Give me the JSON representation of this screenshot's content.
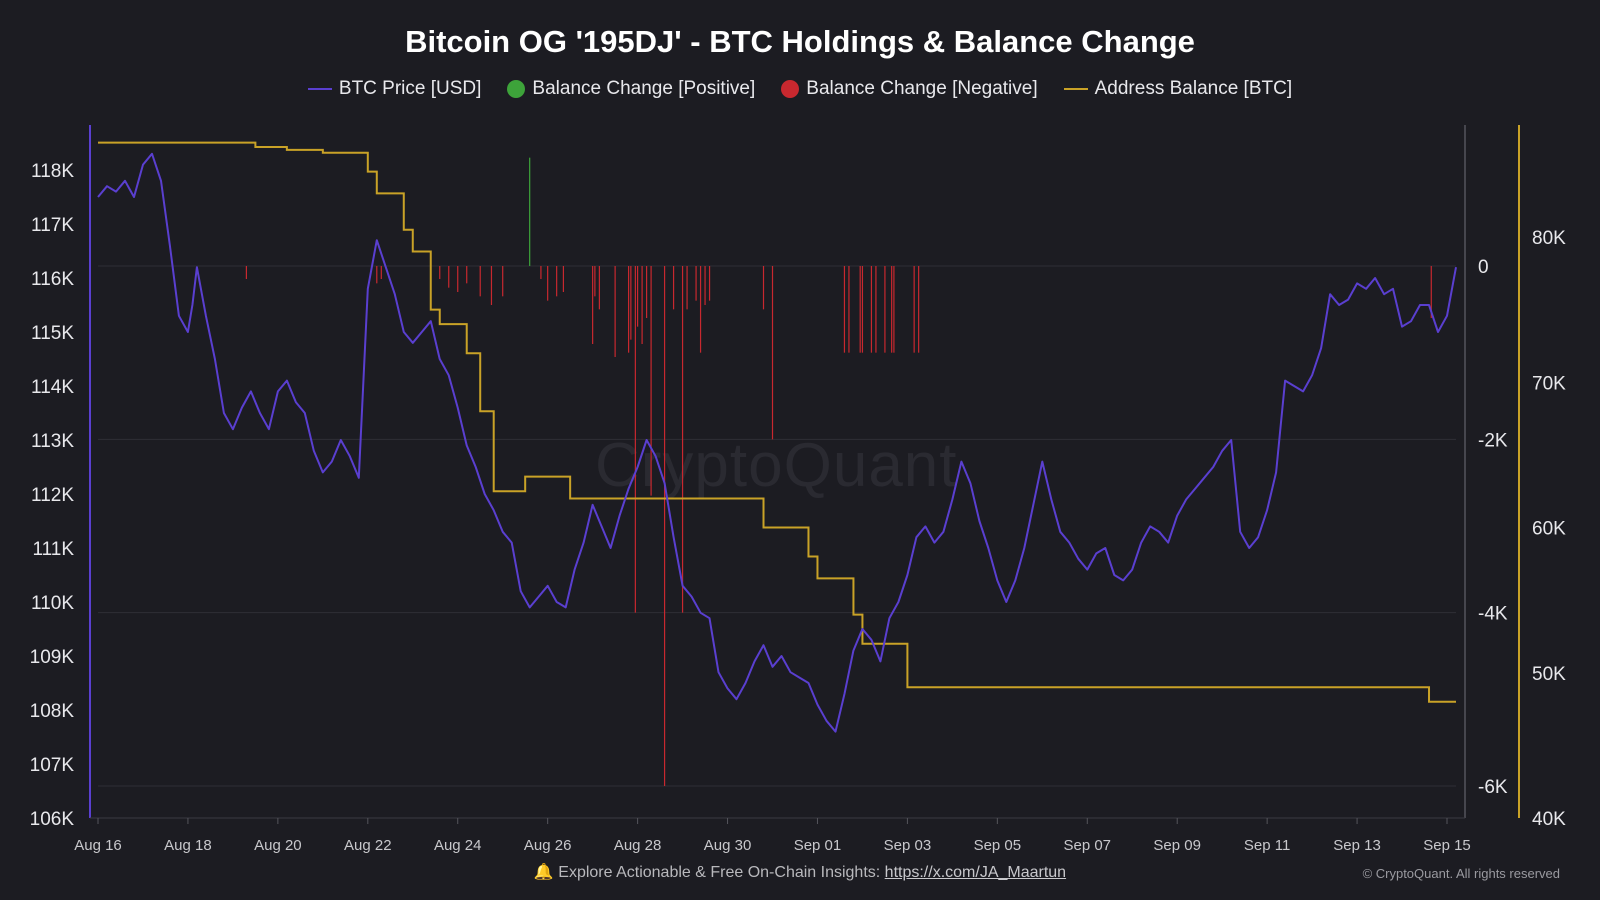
{
  "chart_data": {
    "type": "line",
    "title": "Bitcoin OG '195DJ' - BTC Holdings & Balance Change",
    "legend": [
      {
        "name": "BTC Price [USD]",
        "kind": "line",
        "color": "#5a3fd0"
      },
      {
        "name": "Balance Change [Positive]",
        "kind": "dot",
        "color": "#3da33a"
      },
      {
        "name": "Balance Change [Negative]",
        "kind": "dot",
        "color": "#c8282f"
      },
      {
        "name": "Address Balance [BTC]",
        "kind": "line",
        "color": "#c9a227"
      }
    ],
    "x_ticks": [
      "Aug 16",
      "Aug 18",
      "Aug 20",
      "Aug 22",
      "Aug 24",
      "Aug 26",
      "Aug 28",
      "Aug 30",
      "Sep 01",
      "Sep 03",
      "Sep 05",
      "Sep 07",
      "Sep 09",
      "Sep 11",
      "Sep 13",
      "Sep 15"
    ],
    "x_range_days": [
      0,
      30.2
    ],
    "y_left": {
      "ticks": [
        "118K",
        "117K",
        "116K",
        "115K",
        "114K",
        "113K",
        "112K",
        "111K",
        "110K",
        "109K",
        "108K",
        "107K",
        "106K"
      ],
      "values": [
        118000,
        117000,
        116000,
        115000,
        114000,
        113000,
        112000,
        111000,
        110000,
        109000,
        108000,
        107000,
        106000
      ]
    },
    "y_right_inner": {
      "ticks": [
        "0",
        "-2K",
        "-4K",
        "-6K"
      ],
      "values": [
        0,
        -2000,
        -4000,
        -6000
      ]
    },
    "y_right_outer": {
      "ticks": [
        "80K",
        "70K",
        "60K",
        "50K",
        "40K"
      ],
      "values": [
        80000,
        70000,
        60000,
        50000,
        40000
      ]
    },
    "series": [
      {
        "name": "BTC Price [USD]",
        "axis": "left",
        "x_days": [
          0,
          0.2,
          0.4,
          0.6,
          0.8,
          1.0,
          1.2,
          1.4,
          1.6,
          1.8,
          2.0,
          2.1,
          2.2,
          2.4,
          2.6,
          2.8,
          3.0,
          3.2,
          3.4,
          3.6,
          3.8,
          4.0,
          4.2,
          4.4,
          4.6,
          4.8,
          5.0,
          5.2,
          5.4,
          5.6,
          5.8,
          6.0,
          6.2,
          6.4,
          6.6,
          6.8,
          7.0,
          7.2,
          7.4,
          7.6,
          7.8,
          8.0,
          8.2,
          8.4,
          8.6,
          8.8,
          9.0,
          9.2,
          9.4,
          9.6,
          9.8,
          10.0,
          10.2,
          10.4,
          10.6,
          10.8,
          11.0,
          11.2,
          11.4,
          11.6,
          11.8,
          12.0,
          12.2,
          12.4,
          12.6,
          12.8,
          13.0,
          13.2,
          13.4,
          13.6,
          13.8,
          14.0,
          14.2,
          14.4,
          14.6,
          14.8,
          15.0,
          15.2,
          15.4,
          15.6,
          15.8,
          16.0,
          16.2,
          16.4,
          16.6,
          16.8,
          17.0,
          17.2,
          17.4,
          17.6,
          17.8,
          18.0,
          18.2,
          18.4,
          18.6,
          18.8,
          19.0,
          19.2,
          19.4,
          19.6,
          19.8,
          20.0,
          20.2,
          20.4,
          20.6,
          20.8,
          21.0,
          21.2,
          21.4,
          21.6,
          21.8,
          22.0,
          22.2,
          22.4,
          22.6,
          22.8,
          23.0,
          23.2,
          23.4,
          23.6,
          23.8,
          24.0,
          24.2,
          24.4,
          24.6,
          24.8,
          25.0,
          25.2,
          25.4,
          25.6,
          25.8,
          26.0,
          26.2,
          26.4,
          26.6,
          26.8,
          27.0,
          27.2,
          27.4,
          27.6,
          27.8,
          28.0,
          28.2,
          28.4,
          28.6,
          28.8,
          29.0,
          29.2,
          29.4,
          29.6,
          29.8,
          30.0,
          30.2
        ],
        "values": [
          117500,
          117700,
          117600,
          117800,
          117500,
          118100,
          118300,
          117800,
          116600,
          115300,
          115000,
          115500,
          116200,
          115300,
          114500,
          113500,
          113200,
          113600,
          113900,
          113500,
          113200,
          113900,
          114100,
          113700,
          113500,
          112800,
          112400,
          112600,
          113000,
          112700,
          112300,
          115800,
          116700,
          116200,
          115700,
          115000,
          114800,
          115000,
          115200,
          114500,
          114200,
          113600,
          112900,
          112500,
          112000,
          111700,
          111300,
          111100,
          110200,
          109900,
          110100,
          110300,
          110000,
          109900,
          110600,
          111100,
          111800,
          111400,
          111000,
          111600,
          112100,
          112500,
          113000,
          112700,
          112200,
          111200,
          110300,
          110100,
          109800,
          109700,
          108700,
          108400,
          108200,
          108500,
          108900,
          109200,
          108800,
          109000,
          108700,
          108600,
          108500,
          108100,
          107800,
          107600,
          108300,
          109100,
          109500,
          109300,
          108900,
          109700,
          110000,
          110500,
          111200,
          111400,
          111100,
          111300,
          111900,
          112600,
          112200,
          111500,
          111000,
          110400,
          110000,
          110400,
          111000,
          111800,
          112600,
          111900,
          111300,
          111100,
          110800,
          110600,
          110900,
          111000,
          110500,
          110400,
          110600,
          111100,
          111400,
          111300,
          111100,
          111600,
          111900,
          112100,
          112300,
          112500,
          112800,
          113000,
          111300,
          111000,
          111200,
          111700,
          112400,
          114100,
          114000,
          113900,
          114200,
          114700,
          115700,
          115500,
          115600,
          115900,
          115800,
          116000,
          115700,
          115800,
          115100,
          115200,
          115500,
          115500,
          115000,
          115300,
          116200
        ]
      },
      {
        "name": "Address Balance [BTC]",
        "axis": "right_outer",
        "x_days": [
          0,
          1.0,
          2.0,
          3.0,
          3.5,
          4.2,
          5.0,
          5.5,
          6.0,
          6.2,
          6.6,
          6.8,
          7.0,
          7.4,
          7.6,
          7.8,
          8.2,
          8.5,
          8.8,
          9.0,
          9.5,
          10.0,
          10.5,
          11.0,
          11.5,
          12.0,
          13.0,
          14.0,
          14.4,
          14.8,
          15.2,
          15.8,
          16.0,
          16.4,
          16.8,
          17.0,
          17.6,
          18.0,
          18.6,
          19.0,
          20.0,
          22.0,
          25.0,
          28.0,
          29.0,
          29.6,
          30.2
        ],
        "values": [
          86500,
          86500,
          86500,
          86500,
          86200,
          86000,
          85800,
          85800,
          84500,
          83000,
          83000,
          80500,
          79000,
          75000,
          74000,
          74000,
          72000,
          68000,
          62500,
          62500,
          63500,
          63500,
          62000,
          62000,
          62000,
          62000,
          62000,
          62000,
          62000,
          60000,
          60000,
          58000,
          56500,
          56500,
          54000,
          52000,
          52000,
          49000,
          49000,
          49000,
          49000,
          49000,
          49000,
          49000,
          49000,
          48000,
          48000
        ]
      },
      {
        "name": "Balance Change [Positive]",
        "axis": "right_inner",
        "x_days": [
          9.6
        ],
        "values": [
          1250
        ]
      },
      {
        "name": "Balance Change [Negative]",
        "axis": "right_inner",
        "x_days": [
          3.3,
          6.2,
          6.3,
          7.6,
          7.8,
          8.0,
          8.2,
          8.5,
          8.75,
          9.0,
          9.85,
          10.0,
          10.2,
          10.35,
          11.0,
          11.05,
          11.15,
          11.5,
          11.8,
          11.85,
          11.95,
          12.0,
          12.1,
          12.2,
          12.3,
          12.6,
          12.8,
          13.0,
          13.1,
          13.3,
          13.4,
          13.5,
          13.6,
          14.8,
          15.0,
          16.6,
          16.7,
          16.95,
          17.0,
          17.2,
          17.3,
          17.5,
          17.65,
          17.7,
          18.15,
          18.25,
          29.65
        ],
        "values": [
          -150,
          -200,
          -150,
          -150,
          -250,
          -300,
          -200,
          -350,
          -450,
          -350,
          -150,
          -400,
          -350,
          -300,
          -900,
          -350,
          -500,
          -1050,
          -1000,
          -850,
          -4000,
          -700,
          -900,
          -600,
          -2650,
          -6000,
          -500,
          -4000,
          -500,
          -400,
          -1000,
          -450,
          -400,
          -500,
          -2000,
          -1000,
          -1000,
          -1000,
          -1000,
          -1000,
          -1000,
          -1000,
          -1000,
          -1000,
          -1000,
          -1000,
          -600
        ]
      }
    ],
    "grid": true,
    "legend_placement": "top-center"
  },
  "watermark": "CryptoQuant",
  "footer": {
    "text": "🔔 Explore Actionable & Free On-Chain Insights: ",
    "link": "https://x.com/JA_Maartun",
    "copyright": "© CryptoQuant. All rights reserved"
  }
}
